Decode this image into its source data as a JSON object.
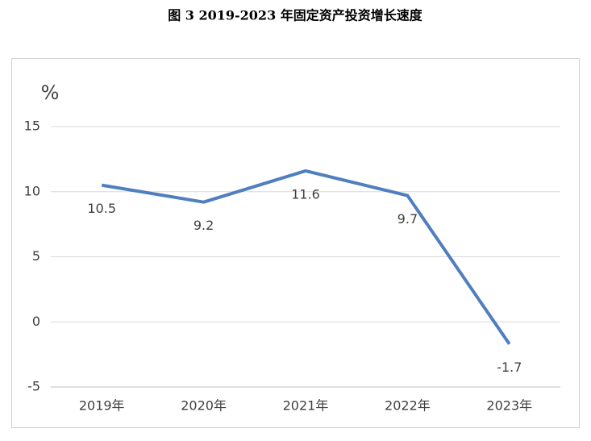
{
  "chart_data": {
    "type": "line",
    "title": "图 3   2019-2023 年固定资产投资增长速度",
    "y_label": "%",
    "categories": [
      "2019年",
      "2020年",
      "2021年",
      "2022年",
      "2023年"
    ],
    "series": [
      {
        "name": "固定资产投资增长速度",
        "color": "#4f7fbe",
        "values": [
          10.5,
          9.2,
          11.6,
          9.7,
          -1.7
        ]
      }
    ],
    "ylim": [
      -5,
      15
    ],
    "yticks": [
      -5,
      0,
      5,
      10,
      15
    ],
    "grid": true
  }
}
